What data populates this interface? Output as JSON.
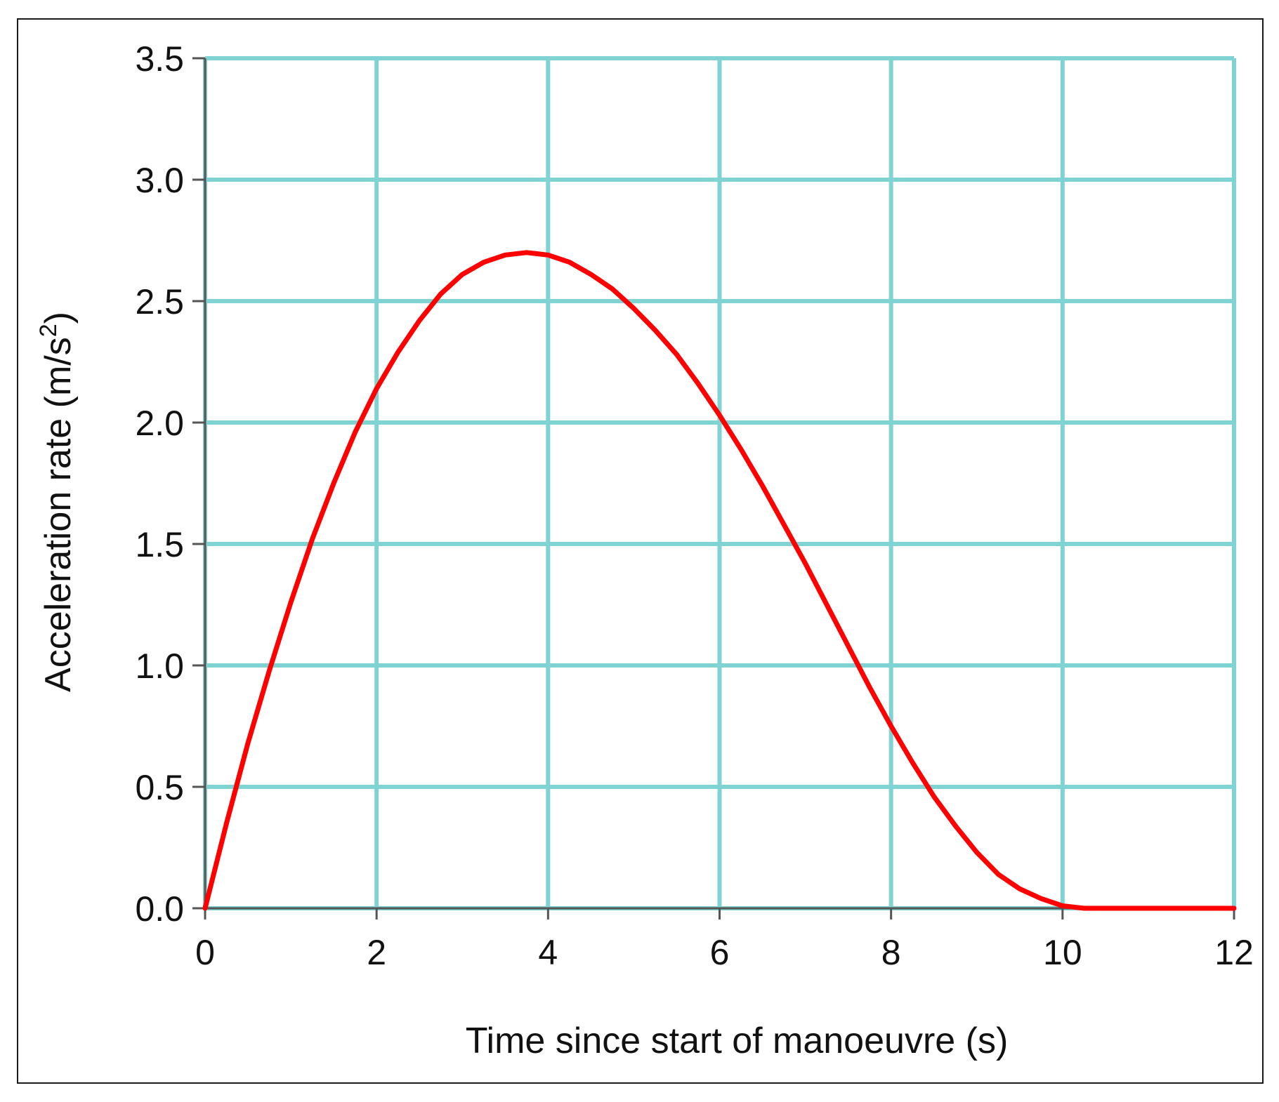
{
  "chart_data": {
    "type": "line",
    "xlabel": "Time since start of manoeuvre (s)",
    "ylabel": "Acceleration rate (m/s",
    "ylabel_sup": "2",
    "ylabel_close": ")",
    "xlim": [
      0,
      12
    ],
    "ylim": [
      0,
      3.5
    ],
    "x_ticks": [
      "0",
      "2",
      "4",
      "6",
      "8",
      "10",
      "12"
    ],
    "y_ticks": [
      "0.0",
      "0.5",
      "1.0",
      "1.5",
      "2.0",
      "2.5",
      "3.0",
      "3.5"
    ],
    "grid": true,
    "colors": {
      "grid": "#7fd3d3",
      "axis": "#555555",
      "series": "#ff0000"
    },
    "series": [
      {
        "x": [
          0,
          0.25,
          0.5,
          0.75,
          1.0,
          1.25,
          1.5,
          1.75,
          2.0,
          2.25,
          2.5,
          2.75,
          3.0,
          3.25,
          3.5,
          3.75,
          4.0,
          4.25,
          4.5,
          4.75,
          5.0,
          5.25,
          5.5,
          5.75,
          6.0,
          6.25,
          6.5,
          6.75,
          7.0,
          7.25,
          7.5,
          7.75,
          8.0,
          8.25,
          8.5,
          8.75,
          9.0,
          9.25,
          9.5,
          9.75,
          10.0,
          10.25,
          10.5,
          10.75,
          11.0,
          11.5,
          12.0
        ],
        "y": [
          0.0,
          0.35,
          0.68,
          0.98,
          1.26,
          1.52,
          1.75,
          1.96,
          2.14,
          2.29,
          2.42,
          2.53,
          2.61,
          2.66,
          2.69,
          2.7,
          2.69,
          2.66,
          2.61,
          2.55,
          2.47,
          2.38,
          2.28,
          2.16,
          2.03,
          1.89,
          1.74,
          1.58,
          1.42,
          1.25,
          1.08,
          0.91,
          0.75,
          0.6,
          0.46,
          0.34,
          0.23,
          0.14,
          0.08,
          0.04,
          0.01,
          0.0,
          0.0,
          0.0,
          0.0,
          0.0,
          0.0
        ]
      }
    ]
  }
}
